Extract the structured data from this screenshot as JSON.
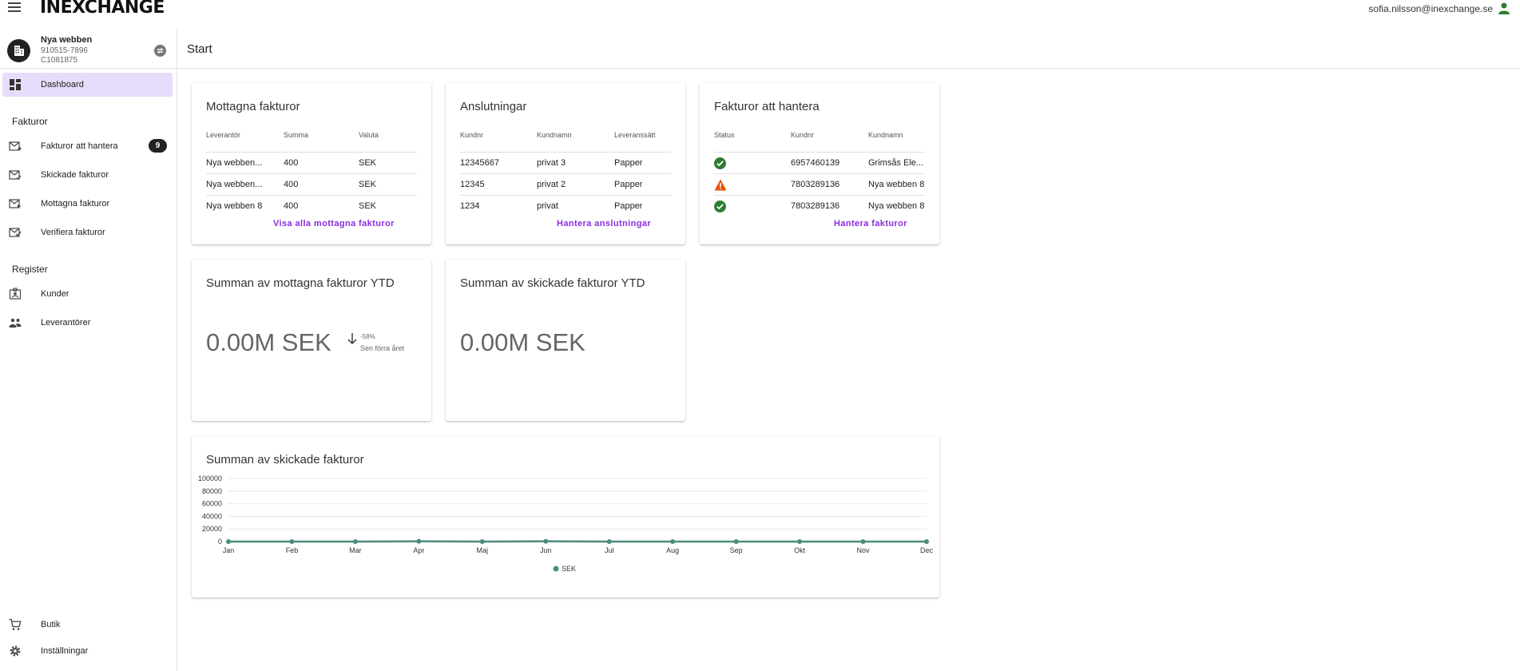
{
  "app": {
    "logo": "INEXCHANGE",
    "user_email": "sofia.nilsson@inexchange.se"
  },
  "org": {
    "name": "Nya webben",
    "id1": "910515-7896",
    "id2": "C1081875"
  },
  "sidebar": {
    "dashboard": "Dashboard",
    "fakturor_header": "Fakturor",
    "items": [
      {
        "label": "Fakturor att hantera",
        "badge": "9"
      },
      {
        "label": "Skickade fakturor"
      },
      {
        "label": "Mottagna fakturor"
      },
      {
        "label": "Verifiera fakturor"
      }
    ],
    "register_header": "Register",
    "register_items": [
      {
        "label": "Kunder"
      },
      {
        "label": "Leverantörer"
      }
    ],
    "bottom_items": [
      {
        "label": "Butik"
      },
      {
        "label": "Inställningar"
      }
    ]
  },
  "page": {
    "title": "Start"
  },
  "cards": {
    "received": {
      "title": "Mottagna fakturor",
      "columns": [
        "Leverantör",
        "Summa",
        "Valuta"
      ],
      "rows": [
        [
          "Nya webben...",
          "400",
          "SEK"
        ],
        [
          "Nya webben...",
          "400",
          "SEK"
        ],
        [
          "Nya webben 8",
          "400",
          "SEK"
        ]
      ],
      "link": "Visa alla mottagna fakturor"
    },
    "connections": {
      "title": "Anslutningar",
      "columns": [
        "Kundnr",
        "Kundnamn",
        "Leveranssätt"
      ],
      "rows": [
        [
          "12345667",
          "privat 3",
          "Papper"
        ],
        [
          "12345",
          "privat 2",
          "Papper"
        ],
        [
          "1234",
          "privat",
          "Papper"
        ]
      ],
      "link": "Hantera anslutningar"
    },
    "to_handle": {
      "title": "Fakturor att hantera",
      "columns": [
        "Status",
        "Kundnr",
        "Kundnamn"
      ],
      "rows": [
        {
          "status": "ok",
          "kundnr": "6957460139",
          "kundnamn": "Grimsås Ele..."
        },
        {
          "status": "warning",
          "kundnr": "7803289136",
          "kundnamn": "Nya webben 8"
        },
        {
          "status": "ok",
          "kundnr": "7803289136",
          "kundnamn": "Nya webben 8"
        }
      ],
      "link": "Hantera fakturor"
    },
    "sum_received": {
      "title": "Summan av mottagna fakturor YTD",
      "value": "0.00M SEK",
      "change": "-58%",
      "change_label": "Sen förra året"
    },
    "sum_sent": {
      "title": "Summan av skickade fakturor YTD",
      "value": "0.00M SEK"
    },
    "sent_chart": {
      "title": "Summan av skickade fakturor"
    }
  },
  "colors": {
    "accent": "#8a2be2",
    "active_nav": "#e6dcfb",
    "series": "#4a8c7e",
    "ok": "#2e7d32",
    "warning": "#e65100"
  },
  "chart_data": {
    "type": "line",
    "categories": [
      "Jan",
      "Feb",
      "Mar",
      "Apr",
      "Maj",
      "Jun",
      "Jul",
      "Aug",
      "Sep",
      "Okt",
      "Nov",
      "Dec"
    ],
    "series": [
      {
        "name": "SEK",
        "values": [
          0,
          0,
          0,
          400,
          0,
          400,
          0,
          0,
          0,
          0,
          0,
          0
        ]
      }
    ],
    "yticks": [
      "0",
      "20000",
      "40000",
      "60000",
      "80000",
      "100000"
    ],
    "ylim": [
      0,
      100000
    ],
    "grid": true,
    "legend": "bottom"
  }
}
